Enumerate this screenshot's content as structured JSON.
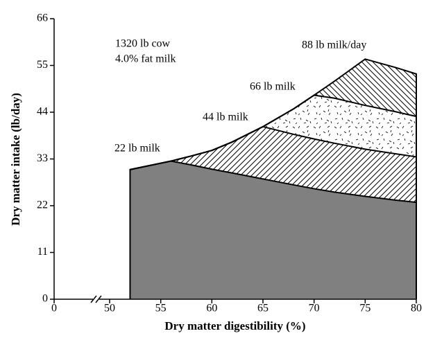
{
  "chart_data": {
    "type": "area",
    "x_label": "Dry matter digestibility (%)",
    "y_label": "Dry matter intake (lb/day)",
    "annotations": [
      "1320 lb cow",
      "4.0% fat milk"
    ],
    "xlim": [
      0,
      80
    ],
    "xbreak": [
      0,
      50
    ],
    "xticks": [
      0,
      50,
      55,
      60,
      65,
      70,
      75,
      80
    ],
    "ylim": [
      0,
      66
    ],
    "yticks": [
      0,
      11,
      22,
      33,
      44,
      55,
      66
    ],
    "x": [
      52,
      54,
      56,
      58,
      60,
      62,
      65,
      68,
      70,
      72,
      75,
      78,
      80
    ],
    "series": [
      {
        "name": "22 lb milk",
        "color": "#808080",
        "values": [
          30.5,
          31.5,
          32.5,
          31.6,
          30.6,
          29.7,
          28.3,
          26.9,
          26.0,
          25.2,
          24.2,
          23.3,
          22.8
        ]
      },
      {
        "name": "44 lb milk",
        "color": "hatch-right",
        "values": [
          30.5,
          31.5,
          32.5,
          33.7,
          35.0,
          37.0,
          40.6,
          38.8,
          37.7,
          36.7,
          35.3,
          34.2,
          33.5
        ]
      },
      {
        "name": "66 lb milk",
        "color": "stipple",
        "values": [
          30.5,
          31.5,
          32.5,
          33.7,
          35.0,
          37.0,
          40.6,
          44.8,
          48.0,
          47.3,
          45.6,
          44.1,
          43.0
        ]
      },
      {
        "name": "88 lb milk/day",
        "color": "hatch-left",
        "values": [
          30.5,
          31.5,
          32.5,
          33.7,
          35.0,
          37.0,
          40.6,
          44.8,
          48.0,
          51.3,
          56.5,
          54.5,
          53.0
        ]
      }
    ]
  }
}
